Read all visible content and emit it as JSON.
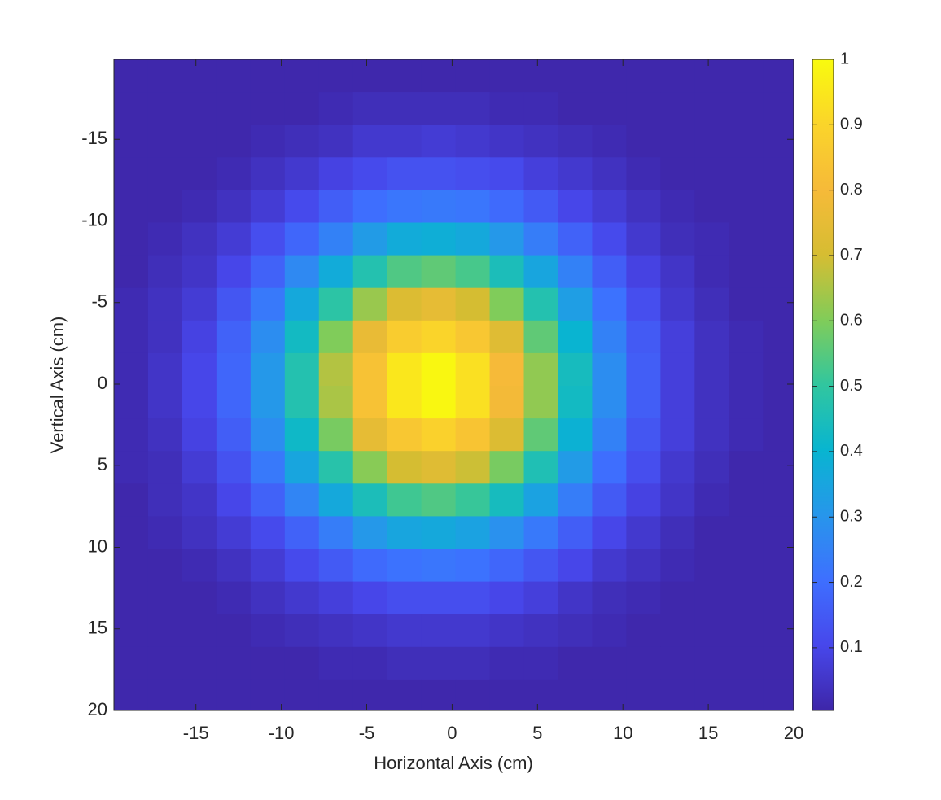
{
  "chart_data": {
    "type": "heatmap",
    "xlabel": "Horizontal Axis (cm)",
    "ylabel": "Vertical Axis (cm)",
    "x": [
      -18.8,
      -16.8,
      -14.8,
      -12.8,
      -10.8,
      -8.8,
      -6.8,
      -4.8,
      -2.8,
      -0.8,
      1.2,
      3.2,
      5.2,
      7.2,
      9.2,
      11.2,
      13.2,
      15.2,
      17.2,
      19.2
    ],
    "y": [
      -18.9,
      -16.9,
      -14.9,
      -12.9,
      -10.9,
      -8.9,
      -6.9,
      -4.9,
      -2.9,
      -0.9,
      1.1,
      3.1,
      5.1,
      7.1,
      9.1,
      11.1,
      13.1,
      15.1,
      17.1,
      19.1
    ],
    "values": [
      [
        0.01,
        0.01,
        0.01,
        0.01,
        0.01,
        0.01,
        0.01,
        0.01,
        0.01,
        0.01,
        0.01,
        0.01,
        0.01,
        0.01,
        0.01,
        0.01,
        0.01,
        0.01,
        0.01,
        0.01
      ],
      [
        0.01,
        0.01,
        0.01,
        0.01,
        0.01,
        0.01,
        0.02,
        0.03,
        0.03,
        0.03,
        0.03,
        0.02,
        0.02,
        0.01,
        0.01,
        0.01,
        0.01,
        0.01,
        0.01,
        0.01
      ],
      [
        0.01,
        0.01,
        0.01,
        0.01,
        0.02,
        0.03,
        0.04,
        0.06,
        0.06,
        0.07,
        0.06,
        0.05,
        0.04,
        0.03,
        0.02,
        0.01,
        0.01,
        0.01,
        0.01,
        0.01
      ],
      [
        0.01,
        0.01,
        0.01,
        0.02,
        0.04,
        0.06,
        0.09,
        0.11,
        0.13,
        0.13,
        0.12,
        0.11,
        0.08,
        0.06,
        0.04,
        0.02,
        0.01,
        0.01,
        0.01,
        0.01
      ],
      [
        0.01,
        0.01,
        0.02,
        0.04,
        0.07,
        0.11,
        0.16,
        0.2,
        0.22,
        0.23,
        0.22,
        0.19,
        0.15,
        0.1,
        0.07,
        0.04,
        0.02,
        0.01,
        0.01,
        0.01
      ],
      [
        0.01,
        0.02,
        0.04,
        0.07,
        0.12,
        0.18,
        0.25,
        0.32,
        0.37,
        0.38,
        0.36,
        0.31,
        0.24,
        0.17,
        0.11,
        0.06,
        0.03,
        0.02,
        0.01,
        0.01
      ],
      [
        0.01,
        0.03,
        0.05,
        0.1,
        0.17,
        0.27,
        0.37,
        0.47,
        0.54,
        0.56,
        0.53,
        0.45,
        0.35,
        0.25,
        0.16,
        0.09,
        0.05,
        0.02,
        0.01,
        0.01
      ],
      [
        0.02,
        0.04,
        0.07,
        0.14,
        0.23,
        0.36,
        0.49,
        0.63,
        0.72,
        0.75,
        0.7,
        0.6,
        0.47,
        0.33,
        0.21,
        0.12,
        0.06,
        0.03,
        0.01,
        0.01
      ],
      [
        0.02,
        0.04,
        0.09,
        0.17,
        0.28,
        0.43,
        0.6,
        0.76,
        0.87,
        0.9,
        0.85,
        0.73,
        0.56,
        0.4,
        0.25,
        0.15,
        0.08,
        0.04,
        0.02,
        0.01
      ],
      [
        0.02,
        0.05,
        0.1,
        0.18,
        0.31,
        0.47,
        0.66,
        0.83,
        0.95,
        0.99,
        0.93,
        0.8,
        0.62,
        0.44,
        0.28,
        0.16,
        0.08,
        0.04,
        0.02,
        0.01
      ],
      [
        0.02,
        0.05,
        0.1,
        0.18,
        0.31,
        0.47,
        0.65,
        0.83,
        0.95,
        0.99,
        0.93,
        0.79,
        0.62,
        0.43,
        0.28,
        0.16,
        0.08,
        0.04,
        0.02,
        0.01
      ],
      [
        0.02,
        0.04,
        0.09,
        0.16,
        0.28,
        0.42,
        0.59,
        0.75,
        0.85,
        0.89,
        0.84,
        0.72,
        0.56,
        0.39,
        0.25,
        0.14,
        0.08,
        0.04,
        0.02,
        0.01
      ],
      [
        0.02,
        0.03,
        0.07,
        0.13,
        0.23,
        0.35,
        0.48,
        0.61,
        0.7,
        0.73,
        0.69,
        0.59,
        0.46,
        0.32,
        0.2,
        0.12,
        0.06,
        0.03,
        0.01,
        0.01
      ],
      [
        0.01,
        0.03,
        0.05,
        0.1,
        0.17,
        0.26,
        0.36,
        0.45,
        0.52,
        0.54,
        0.51,
        0.44,
        0.34,
        0.24,
        0.15,
        0.09,
        0.05,
        0.02,
        0.01,
        0.01
      ],
      [
        0.01,
        0.02,
        0.04,
        0.07,
        0.11,
        0.17,
        0.24,
        0.31,
        0.35,
        0.36,
        0.34,
        0.29,
        0.23,
        0.16,
        0.1,
        0.06,
        0.03,
        0.01,
        0.01,
        0.01
      ],
      [
        0.01,
        0.01,
        0.02,
        0.04,
        0.07,
        0.11,
        0.15,
        0.19,
        0.21,
        0.22,
        0.21,
        0.18,
        0.14,
        0.1,
        0.06,
        0.04,
        0.02,
        0.01,
        0.01,
        0.01
      ],
      [
        0.01,
        0.01,
        0.01,
        0.02,
        0.04,
        0.06,
        0.08,
        0.1,
        0.12,
        0.12,
        0.12,
        0.1,
        0.08,
        0.05,
        0.03,
        0.02,
        0.01,
        0.01,
        0.01,
        0.01
      ],
      [
        0.01,
        0.01,
        0.01,
        0.01,
        0.02,
        0.03,
        0.04,
        0.05,
        0.06,
        0.06,
        0.06,
        0.05,
        0.04,
        0.03,
        0.02,
        0.01,
        0.01,
        0.01,
        0.01,
        0.01
      ],
      [
        0.01,
        0.01,
        0.01,
        0.01,
        0.01,
        0.01,
        0.02,
        0.02,
        0.03,
        0.03,
        0.03,
        0.02,
        0.02,
        0.01,
        0.01,
        0.01,
        0.01,
        0.01,
        0.01,
        0.01
      ],
      [
        0.01,
        0.01,
        0.01,
        0.01,
        0.01,
        0.01,
        0.01,
        0.01,
        0.01,
        0.01,
        0.01,
        0.01,
        0.01,
        0.01,
        0.01,
        0.01,
        0.01,
        0.01,
        0.01,
        0.01
      ]
    ],
    "xlim": [
      -19.8,
      20
    ],
    "ylim": [
      -19.9,
      20
    ],
    "y_direction": "reverse",
    "xticks": [
      -15,
      -10,
      -5,
      0,
      5,
      10,
      15,
      20
    ],
    "yticks": [
      -15,
      -10,
      -5,
      0,
      5,
      10,
      15,
      20
    ],
    "colormap": "parula",
    "colorbar": {
      "clim": [
        0.004,
        1
      ],
      "ticks": [
        0.1,
        0.2,
        0.3,
        0.4,
        0.5,
        0.6,
        0.7,
        0.8,
        0.9,
        1
      ]
    }
  }
}
